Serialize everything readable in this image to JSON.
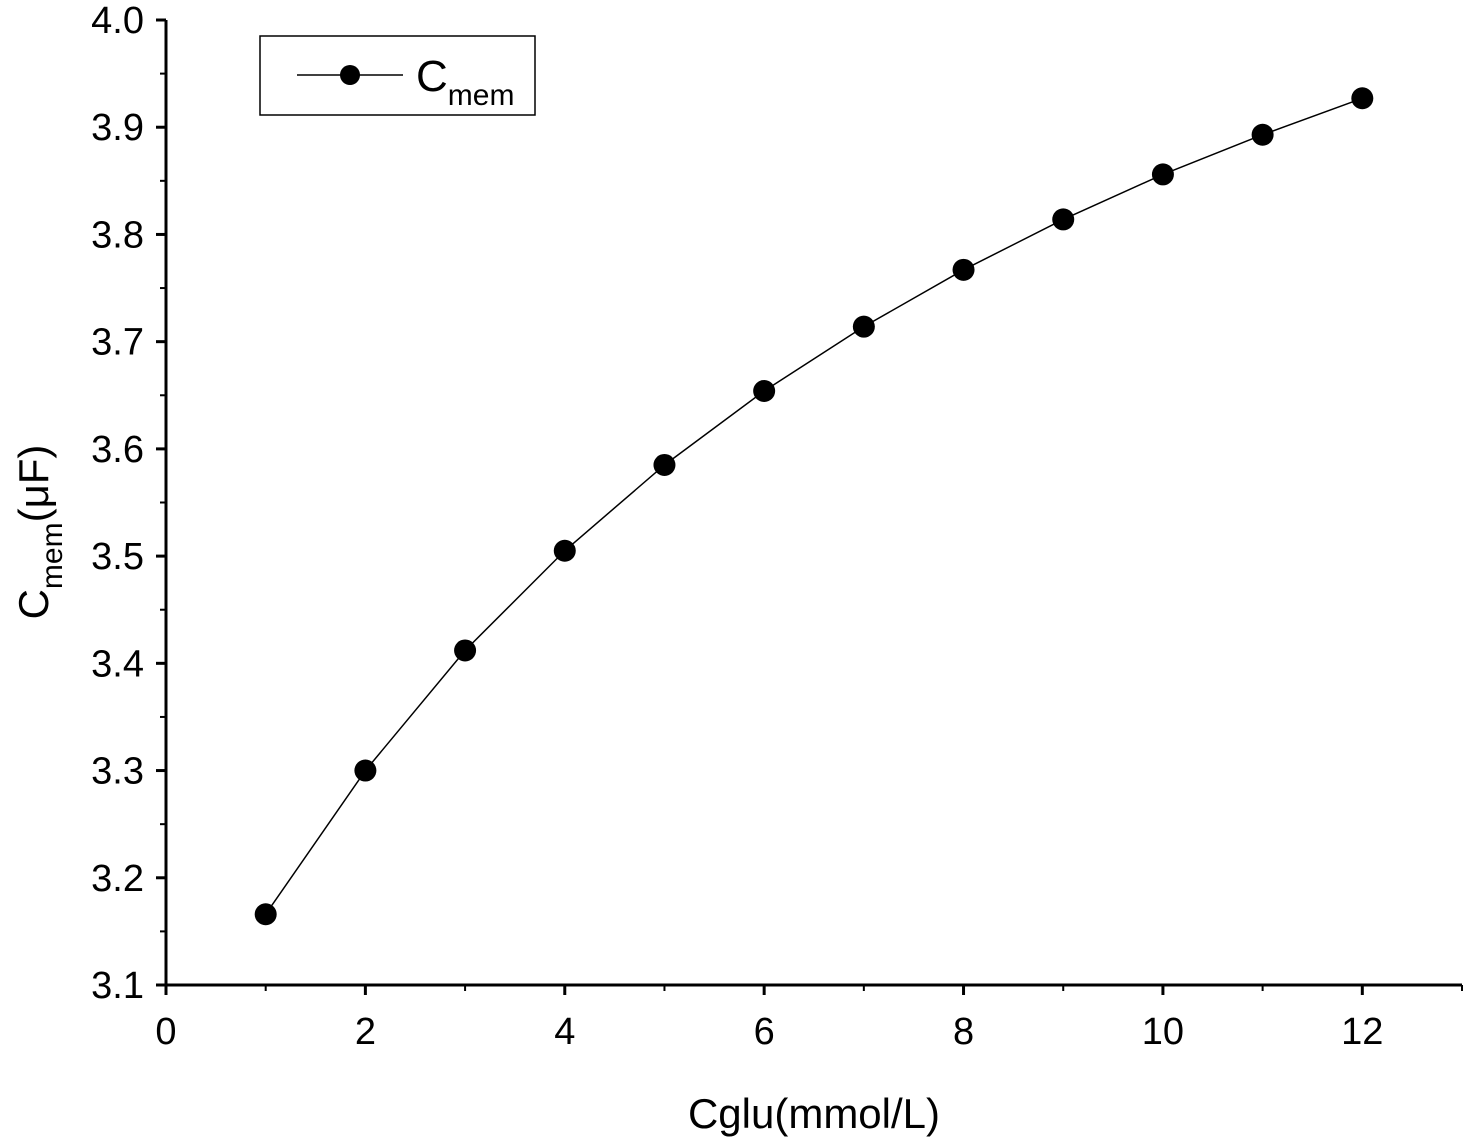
{
  "chart_data": {
    "type": "line",
    "title": "",
    "xlabel": "Cglu(mmol/L)",
    "ylabel": {
      "main": "C",
      "sub": "mem",
      "unit": "(μF)"
    },
    "xlim": [
      0,
      13
    ],
    "ylim": [
      3.1,
      4.0
    ],
    "x_ticks": [
      0,
      2,
      4,
      6,
      8,
      10,
      12
    ],
    "y_ticks": [
      3.1,
      3.2,
      3.3,
      3.4,
      3.5,
      3.6,
      3.7,
      3.8,
      3.9,
      4.0
    ],
    "x_tick_labels": [
      "0",
      "2",
      "4",
      "6",
      "8",
      "10",
      "12"
    ],
    "y_tick_labels": [
      "3.1",
      "3.2",
      "3.3",
      "3.4",
      "3.5",
      "3.6",
      "3.7",
      "3.8",
      "3.9",
      "4.0"
    ],
    "grid": false,
    "legend_position": "top-left",
    "series": [
      {
        "name": {
          "main": "C",
          "sub": "mem"
        },
        "marker": "filled-circle",
        "color": "#000000",
        "x": [
          1,
          2,
          3,
          4,
          5,
          6,
          7,
          8,
          9,
          10,
          11,
          12
        ],
        "y": [
          3.166,
          3.3,
          3.412,
          3.505,
          3.585,
          3.654,
          3.714,
          3.767,
          3.814,
          3.856,
          3.893,
          3.927
        ]
      }
    ]
  }
}
